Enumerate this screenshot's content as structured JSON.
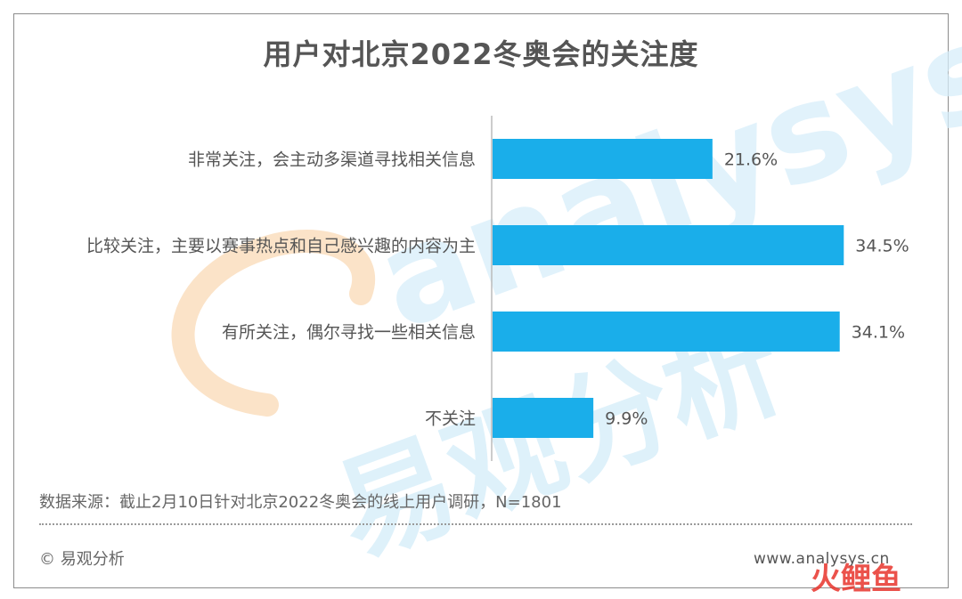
{
  "title": "用户对北京2022冬奥会的关注度",
  "source_note": "数据来源：截止2月10日针对北京2022冬奥会的线上用户调研，N=1801",
  "copyright": "© 易观分析",
  "website": "www.analysys.cn",
  "watermark": {
    "latin": "analysys",
    "chinese": "易观分析",
    "corner_badge": "火鲤鱼"
  },
  "colors": {
    "bar": "#1aaeea",
    "axis": "#bbbbbb",
    "text": "#555555",
    "watermark_blue": "#d7eefa",
    "watermark_orange": "#fbe3c8",
    "badge_red": "#e8342c",
    "badge_green": "#1f9d4e"
  },
  "chart_data": {
    "type": "bar",
    "orientation": "horizontal",
    "categories": [
      "非常关注，会主动多渠道寻找相关信息",
      "比较关注，主要以赛事热点和自己感兴趣的内容为主",
      "有所关注，偶尔寻找一些相关信息",
      "不关注"
    ],
    "values": [
      21.6,
      34.5,
      34.1,
      9.9
    ],
    "value_labels": [
      "21.6%",
      "34.5%",
      "34.1%",
      "9.9%"
    ],
    "unit": "%",
    "xlim": [
      0,
      35
    ],
    "grid": false,
    "legend": "none"
  }
}
